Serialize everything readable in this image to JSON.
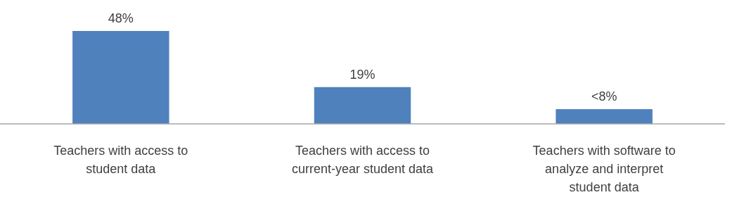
{
  "chart_data": {
    "type": "bar",
    "categories": [
      "Teachers with access to student data",
      "Teachers with access to current-year student data",
      "Teachers with software to analyze and interpret student data"
    ],
    "values": [
      48,
      19,
      7.6
    ],
    "value_labels": [
      "48%",
      "19%",
      "<8%"
    ],
    "color": "#4f81bd"
  }
}
